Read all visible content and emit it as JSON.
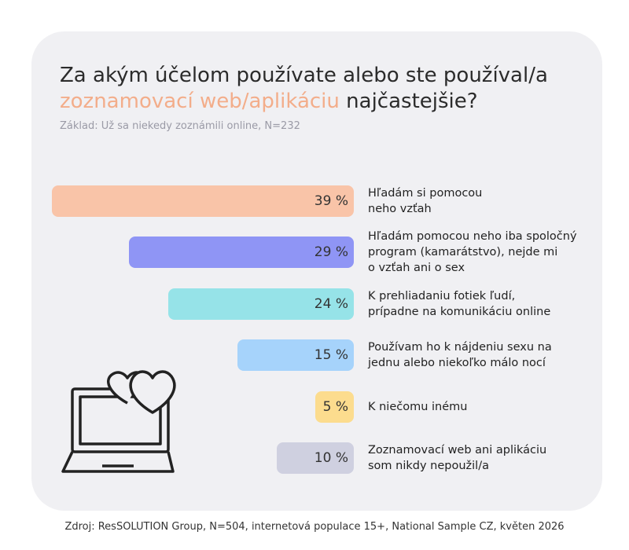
{
  "chart_data": {
    "type": "bar",
    "title": {
      "lead": "Za akým účelom používate alebo ste používal/a",
      "highlight": "zoznamovací web/aplikáciu",
      "tail": "najčastejšie?"
    },
    "subtitle": "Základ: Už sa niekedy zoznámili online, N=232",
    "categories": [
      "Hľadám si pomocou\nneho vzťah",
      "Hľadám pomocou neho iba spoločný\nprogram (kamarátstvo), nejde mi\no vzťah ani o sex",
      "K prehliadaniu fotiek ľudí,\nprípadne na komunikáciu online",
      "Používam ho k nájdeniu sexu na\njednu alebo niekoľko málo nocí",
      "K niečomu inému",
      "Zoznamovací web ani aplikáciu\nsom nikdy nepoužil/a"
    ],
    "values": [
      39,
      29,
      24,
      15,
      5,
      10
    ],
    "value_labels": [
      "39 %",
      "29 %",
      "24 %",
      "15 %",
      "5 %",
      "10 %"
    ],
    "colors": [
      "#f9c4a8",
      "#8f95f5",
      "#96e3e8",
      "#a6d3fb",
      "#fcdc8e",
      "#cfd0e0"
    ],
    "source": "Zdroj: ResSOLUTION Group, N=504, internetová populace 15+, National Sample CZ, květen 2026"
  }
}
